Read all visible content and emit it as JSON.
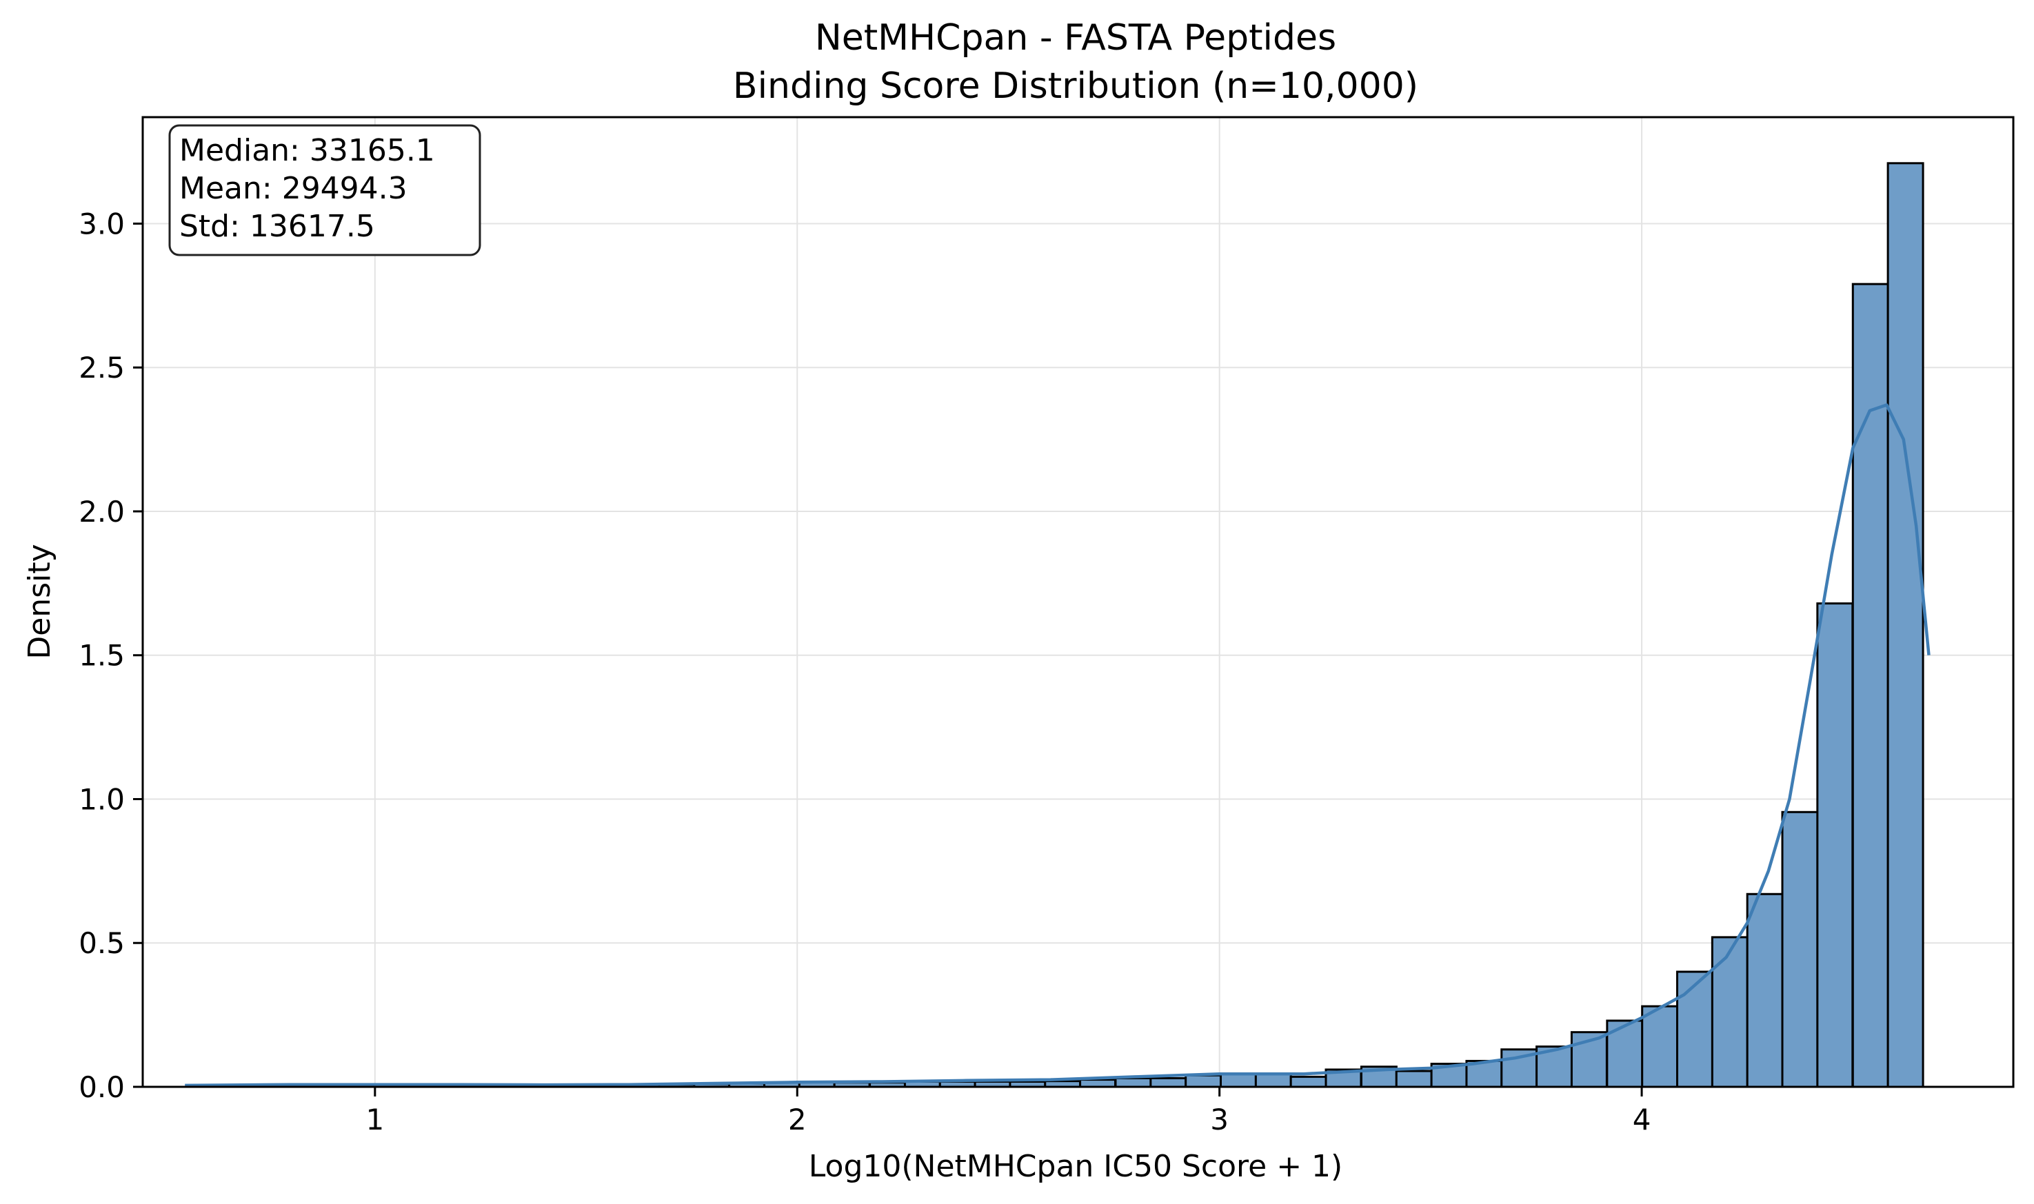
{
  "chart_data": {
    "type": "bar",
    "title": "NetMHCpan - FASTA Peptides",
    "subtitle": "Binding Score Distribution (n=10,000)",
    "xlabel": "Log10(NetMHCpan IC50 Score + 1)",
    "ylabel": "Density",
    "xlim": [
      0.45,
      4.88
    ],
    "ylim": [
      0,
      3.37
    ],
    "xticks": [
      1,
      2,
      3,
      4
    ],
    "yticks": [
      0.0,
      0.5,
      1.0,
      1.5,
      2.0,
      2.5,
      3.0
    ],
    "xtick_labels": [
      "1",
      "2",
      "3",
      "4"
    ],
    "ytick_labels": [
      "0.0",
      "0.5",
      "1.0",
      "1.5",
      "2.0",
      "2.5",
      "3.0"
    ],
    "grid": true,
    "bar_color": "#6f9dc8",
    "bar_edge_color": "#000000",
    "kde_color": "#3f7db4",
    "stats": {
      "median": "Median: 33165.1",
      "mean": "Mean: 29494.3",
      "std": "Std: 13617.5"
    },
    "bins": {
      "left_edges": [
        0.592,
        0.675,
        0.758,
        0.841,
        0.924,
        1.008,
        1.091,
        1.174,
        1.257,
        1.34,
        1.423,
        1.506,
        1.59,
        1.673,
        1.756,
        1.839,
        1.922,
        2.005,
        2.088,
        2.172,
        2.255,
        2.338,
        2.421,
        2.504,
        2.587,
        2.67,
        2.754,
        2.837,
        2.92,
        3.003,
        3.086,
        3.169,
        3.252,
        3.336,
        3.419,
        3.502,
        3.585,
        3.668,
        3.751,
        3.834,
        3.918,
        4.001,
        4.084,
        4.167,
        4.25,
        4.333,
        4.416,
        4.5,
        4.583
      ],
      "width": 0.0832,
      "values": [
        0.005,
        0.005,
        0.005,
        0.008,
        0.008,
        0.008,
        0.008,
        0.008,
        0.008,
        0.008,
        0.008,
        0.008,
        0.008,
        0.008,
        0.01,
        0.012,
        0.015,
        0.018,
        0.015,
        0.015,
        0.018,
        0.018,
        0.018,
        0.018,
        0.02,
        0.025,
        0.03,
        0.03,
        0.04,
        0.045,
        0.045,
        0.035,
        0.06,
        0.07,
        0.055,
        0.08,
        0.09,
        0.13,
        0.14,
        0.19,
        0.23,
        0.28,
        0.4,
        0.52,
        0.67,
        0.955,
        1.68,
        2.79,
        3.21
      ]
    },
    "kde": {
      "x": [
        0.55,
        0.8,
        1.0,
        1.2,
        1.4,
        1.6,
        1.8,
        2.0,
        2.2,
        2.4,
        2.6,
        2.8,
        3.0,
        3.2,
        3.4,
        3.5,
        3.6,
        3.7,
        3.8,
        3.9,
        4.0,
        4.1,
        4.2,
        4.25,
        4.3,
        4.35,
        4.4,
        4.45,
        4.5,
        4.54,
        4.58,
        4.62,
        4.65,
        4.68
      ],
      "y": [
        0.005,
        0.008,
        0.008,
        0.008,
        0.007,
        0.008,
        0.012,
        0.016,
        0.018,
        0.022,
        0.025,
        0.035,
        0.045,
        0.045,
        0.06,
        0.065,
        0.08,
        0.1,
        0.13,
        0.17,
        0.24,
        0.32,
        0.45,
        0.57,
        0.75,
        1.0,
        1.42,
        1.85,
        2.22,
        2.35,
        2.37,
        2.25,
        1.95,
        1.5
      ]
    }
  }
}
